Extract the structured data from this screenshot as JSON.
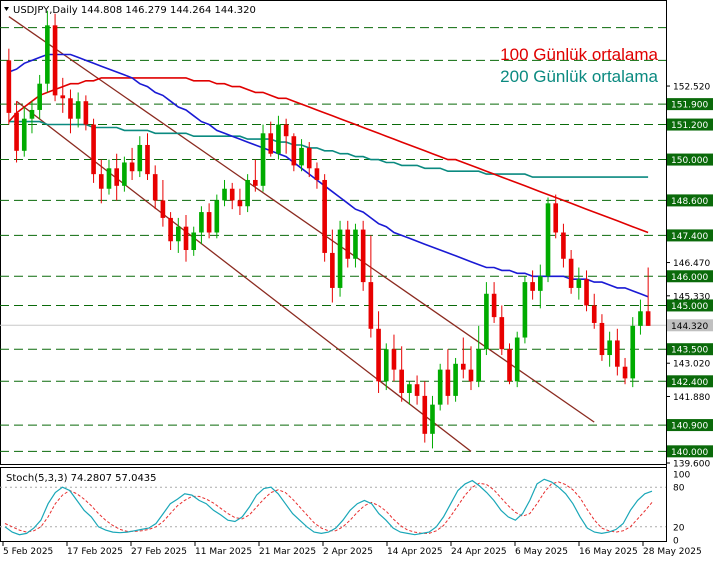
{
  "chart_data": [
    {
      "type": "candlestick",
      "title": "USDJPY,Daily  144.808 146.279 144.264 144.320",
      "ylim": [
        139.6,
        155.4
      ],
      "grid": false,
      "legend_placement": "top-right",
      "x_tick_labels": [
        "5 Feb 2025",
        "17 Feb 2025",
        "27 Feb 2025",
        "11 Mar 2025",
        "21 Mar 2025",
        "2 Apr 2025",
        "14 Apr 2025",
        "24 Apr 2025",
        "6 May 2025",
        "16 May 2025",
        "28 May 2025"
      ],
      "price_scale_ticks": [
        152.52,
        151.9,
        151.2,
        150.0,
        148.6,
        147.4,
        146.47,
        146.0,
        145.33,
        145.0,
        144.32,
        143.5,
        143.02,
        142.4,
        141.88,
        140.9,
        140.0,
        139.6
      ],
      "levels": [
        154.52,
        153.4,
        151.9,
        151.2,
        150.0,
        148.6,
        147.4,
        146.0,
        145.0,
        143.5,
        142.4,
        140.9,
        140.0
      ],
      "last_price": 144.32,
      "colors": {
        "up": "#00ab00",
        "down": "#e80000",
        "ma100": "#e00000",
        "ma200": "#0b8a80",
        "ma_blue": "#1a1ad4",
        "channel": "#8b2b20",
        "levels": "#0a6a0a",
        "stoch_k": "#1aa7b8",
        "stoch_d": "#e83030"
      },
      "legend": [
        "100 Günlük ortalama",
        "200 Günlük ortalama"
      ],
      "candles": [
        [
          153.4,
          153.8,
          151.2,
          151.6
        ],
        [
          151.6,
          152.0,
          149.9,
          150.3
        ],
        [
          150.3,
          151.8,
          150.1,
          151.4
        ],
        [
          151.4,
          152.0,
          150.9,
          151.7
        ],
        [
          151.7,
          152.9,
          151.4,
          152.6
        ],
        [
          152.6,
          155.1,
          152.3,
          154.6
        ],
        [
          154.6,
          155.0,
          152.0,
          152.2
        ],
        [
          152.2,
          152.8,
          151.6,
          152.1
        ],
        [
          152.1,
          152.4,
          150.9,
          151.4
        ],
        [
          151.4,
          152.3,
          151.1,
          152.0
        ],
        [
          152.0,
          152.2,
          151.0,
          151.2
        ],
        [
          151.2,
          151.4,
          149.2,
          149.5
        ],
        [
          149.5,
          150.0,
          148.5,
          149.0
        ],
        [
          149.0,
          150.0,
          148.8,
          149.7
        ],
        [
          149.7,
          150.2,
          148.6,
          149.1
        ],
        [
          149.1,
          150.1,
          148.9,
          149.9
        ],
        [
          149.9,
          150.4,
          149.3,
          149.6
        ],
        [
          149.6,
          150.8,
          149.4,
          150.5
        ],
        [
          150.5,
          150.9,
          149.3,
          149.5
        ],
        [
          149.5,
          149.8,
          148.3,
          148.6
        ],
        [
          148.6,
          149.3,
          147.7,
          148.0
        ],
        [
          148.0,
          148.2,
          146.9,
          147.2
        ],
        [
          147.2,
          148.0,
          146.8,
          147.7
        ],
        [
          147.7,
          148.1,
          146.5,
          146.9
        ],
        [
          146.9,
          147.7,
          146.7,
          147.5
        ],
        [
          147.5,
          148.4,
          147.1,
          148.2
        ],
        [
          148.2,
          148.5,
          147.3,
          147.5
        ],
        [
          147.5,
          148.8,
          147.3,
          148.6
        ],
        [
          148.6,
          149.3,
          148.4,
          149.0
        ],
        [
          149.0,
          149.2,
          148.3,
          148.6
        ],
        [
          148.6,
          149.0,
          148.1,
          148.4
        ],
        [
          148.4,
          149.5,
          148.2,
          149.3
        ],
        [
          149.3,
          150.0,
          148.9,
          149.1
        ],
        [
          149.1,
          151.2,
          148.9,
          150.9
        ],
        [
          150.9,
          151.3,
          150.1,
          150.2
        ],
        [
          150.2,
          151.5,
          150.0,
          151.2
        ],
        [
          151.2,
          151.4,
          150.2,
          150.8
        ],
        [
          150.8,
          150.9,
          149.6,
          149.8
        ],
        [
          149.8,
          150.7,
          149.6,
          150.4
        ],
        [
          150.4,
          150.6,
          149.4,
          149.7
        ],
        [
          149.7,
          149.9,
          149.0,
          149.3
        ],
        [
          149.3,
          149.5,
          146.5,
          146.8
        ],
        [
          146.8,
          147.6,
          145.1,
          145.6
        ],
        [
          145.6,
          147.9,
          145.3,
          147.6
        ],
        [
          147.6,
          147.9,
          146.3,
          146.6
        ],
        [
          146.6,
          147.8,
          146.3,
          147.6
        ],
        [
          147.6,
          147.9,
          145.5,
          145.8
        ],
        [
          145.8,
          147.4,
          143.9,
          144.2
        ],
        [
          144.2,
          144.8,
          142.0,
          142.4
        ],
        [
          142.4,
          143.7,
          142.1,
          143.5
        ],
        [
          143.5,
          144.0,
          142.4,
          142.8
        ],
        [
          142.8,
          143.6,
          141.7,
          142.0
        ],
        [
          142.0,
          142.4,
          141.6,
          142.3
        ],
        [
          142.3,
          142.6,
          141.6,
          141.9
        ],
        [
          141.9,
          142.4,
          140.3,
          140.6
        ],
        [
          140.6,
          141.9,
          140.1,
          141.6
        ],
        [
          141.6,
          143.0,
          141.4,
          142.8
        ],
        [
          142.8,
          143.5,
          141.6,
          141.9
        ],
        [
          141.9,
          143.2,
          141.7,
          143.0
        ],
        [
          143.0,
          143.9,
          142.5,
          142.8
        ],
        [
          142.8,
          143.6,
          142.1,
          142.4
        ],
        [
          142.4,
          144.3,
          142.2,
          143.5
        ],
        [
          143.5,
          145.8,
          143.3,
          145.4
        ],
        [
          145.4,
          145.8,
          144.4,
          144.6
        ],
        [
          144.6,
          145.0,
          143.3,
          143.5
        ],
        [
          143.5,
          143.7,
          142.3,
          142.4
        ],
        [
          142.4,
          144.1,
          142.2,
          143.9
        ],
        [
          143.9,
          146.0,
          143.7,
          145.8
        ],
        [
          145.8,
          146.2,
          145.2,
          145.5
        ],
        [
          145.5,
          146.4,
          144.9,
          146.0
        ],
        [
          146.0,
          148.7,
          145.8,
          148.5
        ],
        [
          148.5,
          148.8,
          147.3,
          147.5
        ],
        [
          147.5,
          147.8,
          146.3,
          146.6
        ],
        [
          146.6,
          146.9,
          145.4,
          145.6
        ],
        [
          145.6,
          146.3,
          145.2,
          145.9
        ],
        [
          145.9,
          146.2,
          144.8,
          145.0
        ],
        [
          145.0,
          145.4,
          144.2,
          144.4
        ],
        [
          144.4,
          144.7,
          143.1,
          143.3
        ],
        [
          143.3,
          144.1,
          142.9,
          143.8
        ],
        [
          143.8,
          144.2,
          142.6,
          142.9
        ],
        [
          142.9,
          143.2,
          142.3,
          142.5
        ],
        [
          142.5,
          144.6,
          142.2,
          144.3
        ],
        [
          144.3,
          145.2,
          144.0,
          144.8
        ],
        [
          144.8,
          146.3,
          144.3,
          144.3
        ]
      ],
      "ma200": [
        151.3,
        151.3,
        151.3,
        151.3,
        151.3,
        151.2,
        151.2,
        151.2,
        151.2,
        151.2,
        151.2,
        151.1,
        151.1,
        151.1,
        151.1,
        151.0,
        151.0,
        151.0,
        151.0,
        150.9,
        150.9,
        150.9,
        150.9,
        150.9,
        150.8,
        150.8,
        150.8,
        150.8,
        150.8,
        150.8,
        150.8,
        150.7,
        150.7,
        150.7,
        150.7,
        150.6,
        150.6,
        150.5,
        150.5,
        150.4,
        150.4,
        150.3,
        150.3,
        150.2,
        150.2,
        150.1,
        150.1,
        150.0,
        150.0,
        149.9,
        149.9,
        149.8,
        149.8,
        149.8,
        149.7,
        149.7,
        149.7,
        149.6,
        149.6,
        149.6,
        149.6,
        149.6,
        149.5,
        149.5,
        149.5,
        149.5,
        149.5,
        149.5,
        149.4,
        149.4,
        149.4,
        149.4,
        149.4,
        149.4,
        149.4,
        149.4,
        149.4,
        149.4,
        149.4,
        149.4,
        149.4,
        149.4,
        149.4,
        149.4
      ],
      "ma100": [
        151.3,
        151.6,
        151.8,
        152.0,
        152.2,
        152.3,
        152.4,
        152.5,
        152.6,
        152.6,
        152.7,
        152.7,
        152.8,
        152.8,
        152.8,
        152.8,
        152.8,
        152.8,
        152.8,
        152.8,
        152.8,
        152.8,
        152.8,
        152.8,
        152.7,
        152.7,
        152.7,
        152.6,
        152.6,
        152.5,
        152.5,
        152.4,
        152.3,
        152.3,
        152.2,
        152.1,
        152.1,
        152.0,
        151.9,
        151.8,
        151.7,
        151.6,
        151.5,
        151.4,
        151.3,
        151.2,
        151.1,
        151.0,
        150.9,
        150.8,
        150.7,
        150.6,
        150.5,
        150.4,
        150.3,
        150.2,
        150.1,
        150.0,
        150.0,
        149.9,
        149.8,
        149.7,
        149.6,
        149.5,
        149.4,
        149.3,
        149.2,
        149.1,
        149.0,
        148.9,
        148.8,
        148.7,
        148.6,
        148.5,
        148.4,
        148.3,
        148.2,
        148.1,
        148.0,
        147.9,
        147.8,
        147.7,
        147.6,
        147.5
      ],
      "ma_blue": [
        153.0,
        153.1,
        153.3,
        153.4,
        153.5,
        153.6,
        153.6,
        153.6,
        153.6,
        153.5,
        153.4,
        153.3,
        153.2,
        153.1,
        153.0,
        152.9,
        152.8,
        152.6,
        152.5,
        152.3,
        152.2,
        152.0,
        151.8,
        151.7,
        151.5,
        151.3,
        151.2,
        151.0,
        150.9,
        150.8,
        150.7,
        150.6,
        150.5,
        150.4,
        150.3,
        150.2,
        150.1,
        149.9,
        149.7,
        149.5,
        149.3,
        149.1,
        148.9,
        148.7,
        148.5,
        148.3,
        148.2,
        148.0,
        147.8,
        147.7,
        147.5,
        147.4,
        147.3,
        147.2,
        147.1,
        147.0,
        146.9,
        146.8,
        146.7,
        146.6,
        146.5,
        146.4,
        146.3,
        146.3,
        146.2,
        146.2,
        146.1,
        146.1,
        146.0,
        146.0,
        146.0,
        146.0,
        146.0,
        145.9,
        145.9,
        145.9,
        145.8,
        145.8,
        145.7,
        145.6,
        145.6,
        145.5,
        145.4,
        145.3
      ],
      "channel": {
        "upper": [
          [
            0,
            154.9
          ],
          [
            76,
            141.0
          ]
        ],
        "lower": [
          [
            1,
            152.0
          ],
          [
            60,
            140.0
          ]
        ]
      }
    },
    {
      "type": "line",
      "title": "Stoch(5,3,3) 74.2807 57.0435",
      "ylim": [
        0,
        100
      ],
      "y_tick_labels": [
        100,
        80,
        20,
        0
      ],
      "levels": [
        80,
        20
      ],
      "series": [
        {
          "name": "74.2807",
          "values": [
            20,
            12,
            8,
            10,
            18,
            30,
            55,
            72,
            80,
            75,
            60,
            45,
            35,
            20,
            15,
            12,
            11,
            12,
            14,
            16,
            18,
            25,
            40,
            55,
            62,
            70,
            68,
            60,
            55,
            45,
            38,
            30,
            28,
            35,
            50,
            68,
            78,
            80,
            70,
            55,
            40,
            30,
            20,
            12,
            10,
            12,
            18,
            30,
            45,
            55,
            60,
            55,
            40,
            30,
            18,
            12,
            10,
            8,
            10,
            12,
            20,
            35,
            55,
            75,
            85,
            90,
            82,
            72,
            60,
            45,
            35,
            30,
            40,
            60,
            85,
            92,
            88,
            80,
            70,
            55,
            35,
            18,
            12,
            10,
            12,
            16,
            25,
            45,
            60,
            70,
            74
          ]
        },
        {
          "name": "57.0435",
          "values": [
            25,
            20,
            15,
            12,
            14,
            20,
            35,
            55,
            68,
            75,
            70,
            62,
            52,
            40,
            30,
            22,
            16,
            13,
            13,
            14,
            16,
            20,
            28,
            40,
            52,
            60,
            66,
            66,
            62,
            56,
            48,
            40,
            34,
            32,
            38,
            50,
            62,
            72,
            76,
            72,
            62,
            50,
            38,
            26,
            18,
            14,
            14,
            20,
            30,
            42,
            52,
            57,
            52,
            44,
            32,
            22,
            15,
            12,
            10,
            10,
            14,
            22,
            36,
            52,
            68,
            80,
            86,
            84,
            76,
            64,
            52,
            42,
            36,
            40,
            55,
            72,
            85,
            88,
            84,
            76,
            64,
            46,
            30,
            18,
            14,
            12,
            14,
            20,
            32,
            44,
            57
          ]
        }
      ]
    }
  ]
}
